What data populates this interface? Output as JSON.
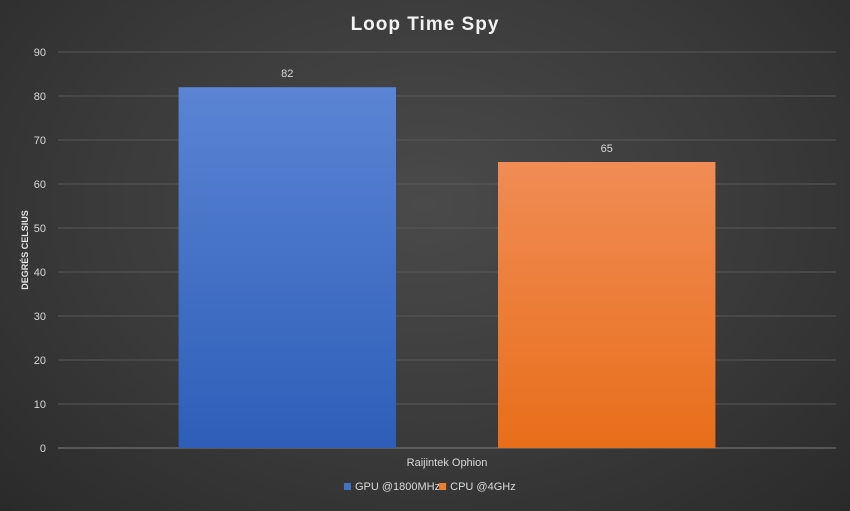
{
  "chart_data": {
    "type": "bar",
    "title": "Loop Time Spy",
    "ylabel": "DEGRÉS CELSIUS",
    "xlabel": "",
    "categories": [
      "Raijintek Ophion"
    ],
    "series": [
      {
        "name": "GPU @1800MHz",
        "values": [
          82
        ],
        "color": "#4472c4"
      },
      {
        "name": "CPU @4GHz",
        "values": [
          65
        ],
        "color": "#ed7d31"
      }
    ],
    "ylim": [
      0,
      90
    ],
    "yticks": [
      0,
      10,
      20,
      30,
      40,
      50,
      60,
      70,
      80,
      90
    ],
    "grid": true,
    "legend": "bottom"
  }
}
